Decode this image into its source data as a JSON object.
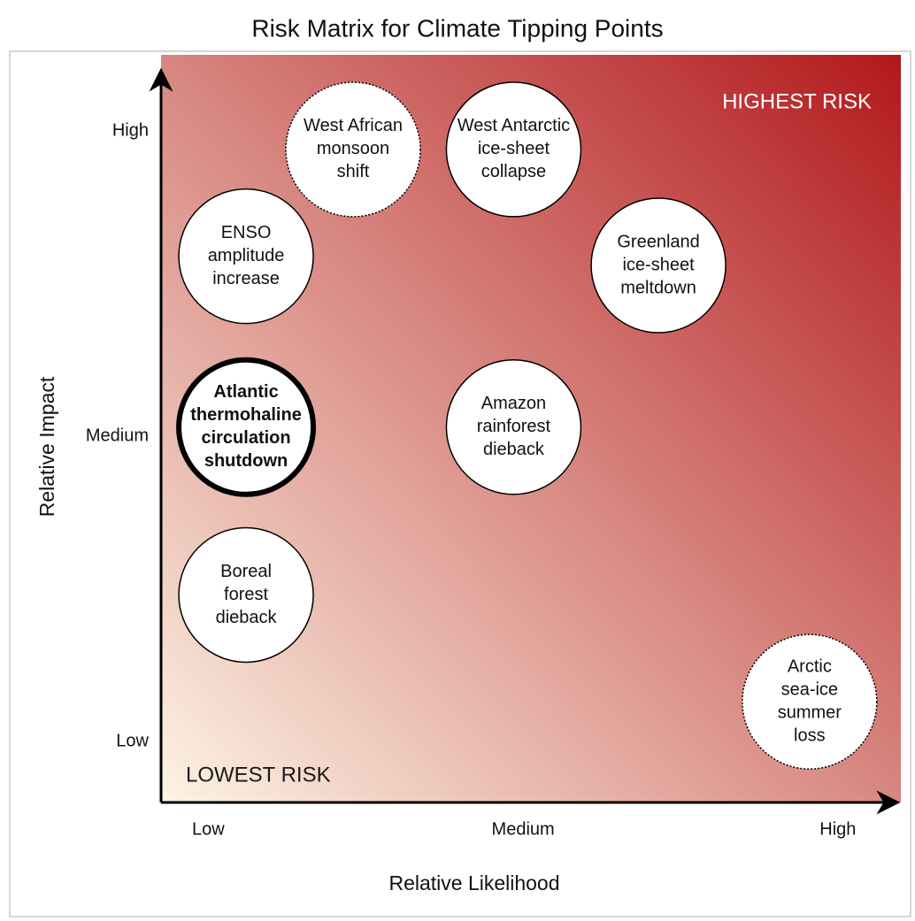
{
  "chart_data": {
    "type": "scatter",
    "title": "Risk Matrix for Climate Tipping Points",
    "x_label": "Relative Likelihood",
    "y_label": "Relative Impact",
    "xlim": [
      -0.15,
      2.2
    ],
    "ylim": [
      -0.2,
      2.25
    ],
    "xticks": [
      {
        "value": 0,
        "label": "Low"
      },
      {
        "value": 1,
        "label": "Medium"
      },
      {
        "value": 2,
        "label": "High"
      }
    ],
    "yticks": [
      {
        "value": 0,
        "label": "Low"
      },
      {
        "value": 1,
        "label": "Medium"
      },
      {
        "value": 2,
        "label": "High"
      }
    ],
    "grid": false,
    "background_gradient": [
      "#fdf4e4",
      "#b2181c"
    ],
    "annotations": [
      {
        "text": "HIGHEST RISK",
        "corner": "top-right",
        "color": "#ffffff"
      },
      {
        "text": "LOWEST RISK",
        "corner": "bottom-left",
        "color": "#1a1a1a"
      }
    ],
    "points": [
      {
        "label": [
          "West African",
          "monsoon",
          "shift"
        ],
        "x": 0.46,
        "y": 1.94,
        "border": "dotted"
      },
      {
        "label": [
          "West Antarctic",
          "ice-sheet",
          "collapse"
        ],
        "x": 0.97,
        "y": 1.94,
        "border": "solid"
      },
      {
        "label": [
          "ENSO",
          "amplitude",
          "increase"
        ],
        "x": 0.12,
        "y": 1.59,
        "border": "solid"
      },
      {
        "label": [
          "Greenland",
          "ice-sheet",
          "meltdown"
        ],
        "x": 1.43,
        "y": 1.56,
        "border": "solid"
      },
      {
        "label": [
          "Atlantic",
          "thermohaline",
          "circulation",
          "shutdown"
        ],
        "x": 0.12,
        "y": 1.03,
        "border": "bold"
      },
      {
        "label": [
          "Amazon",
          "rainforest",
          "dieback"
        ],
        "x": 0.97,
        "y": 1.03,
        "border": "solid"
      },
      {
        "label": [
          "Boreal",
          "forest",
          "dieback"
        ],
        "x": 0.12,
        "y": 0.48,
        "border": "solid"
      },
      {
        "label": [
          "Arctic",
          "sea-ice",
          "summer",
          "loss"
        ],
        "x": 1.91,
        "y": 0.13,
        "border": "dotted"
      }
    ]
  }
}
